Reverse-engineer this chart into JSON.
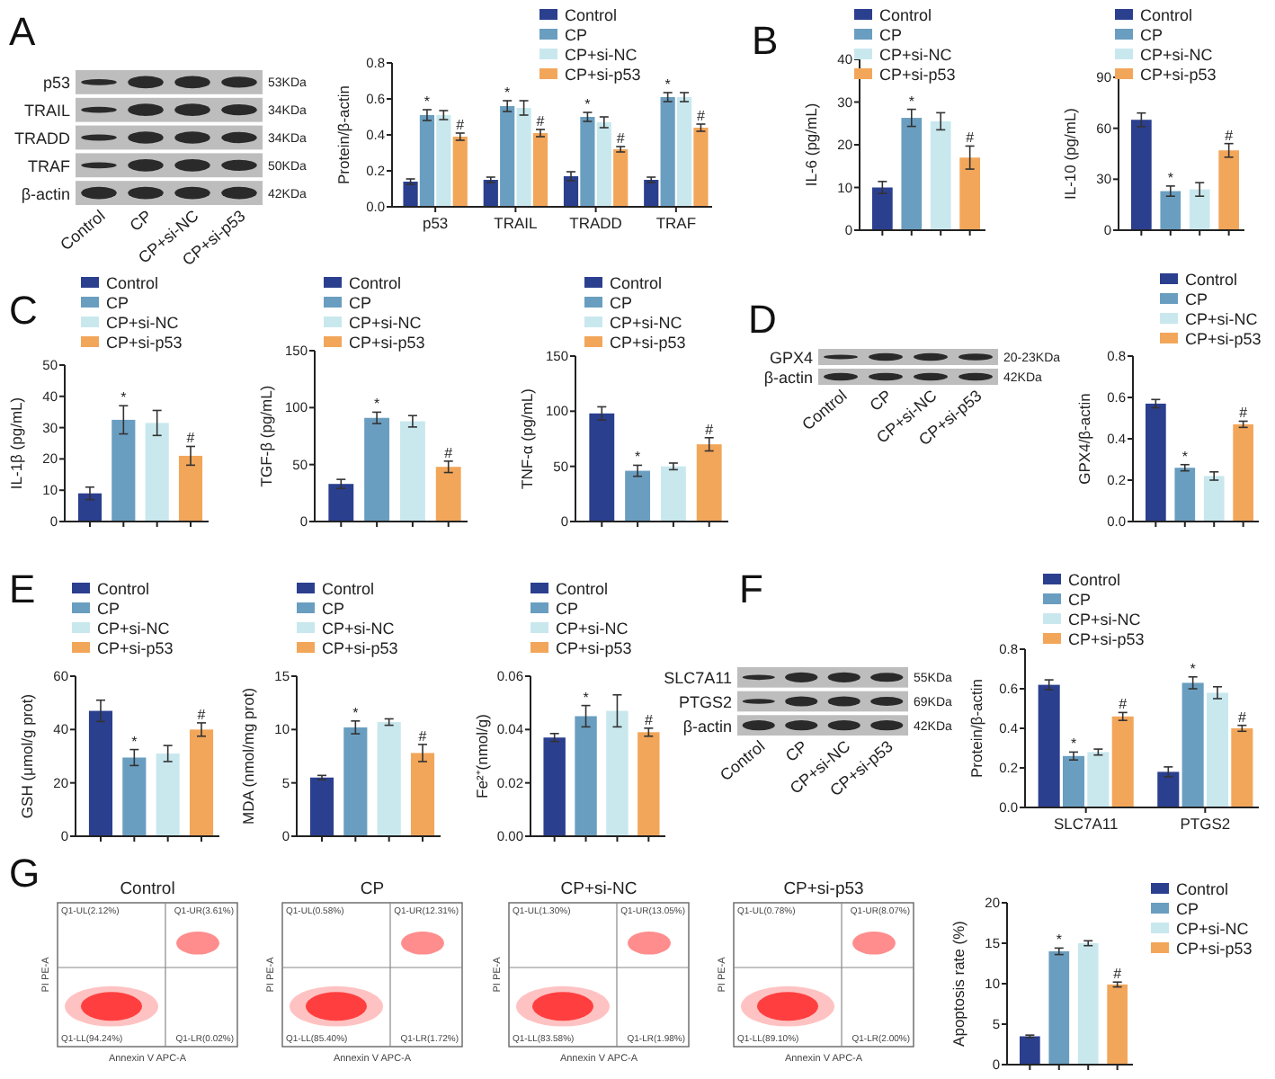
{
  "chart_data": [
    {
      "type": "other",
      "annotations": [
        "A"
      ],
      "categories": [
        "Control",
        "CP",
        "CP+si-NC",
        "CP+si-p53"
      ],
      "y_categories": [
        "p53",
        "TRAIL",
        "TRADD",
        "TRAF",
        "β-actin"
      ],
      "y2_categories": [
        "53KDa",
        "34KDa",
        "34KDa",
        "50KDa",
        "42KDa"
      ]
    },
    {
      "type": "bar",
      "ylabel": "Protein/β-actin",
      "categories": [
        "p53",
        "TRAIL",
        "TRADD",
        "TRAF"
      ],
      "ylim": [
        0,
        0.8
      ],
      "yticks": [
        {
          "value": 0,
          "label": "0.0"
        },
        0.2,
        0.4,
        0.6,
        0.8
      ],
      "legend": "top",
      "series": [
        {
          "name": "Control",
          "color": "#2b3f8f",
          "values": [
            0.14,
            0.15,
            0.17,
            0.15
          ],
          "errors": [
            0.015,
            0.015,
            0.025,
            0.015
          ]
        },
        {
          "name": "CP",
          "color": "#6a9ec0",
          "values": [
            0.51,
            0.56,
            0.5,
            0.61
          ],
          "errors": [
            0.03,
            0.03,
            0.025,
            0.025
          ],
          "value_labels": [
            "*",
            "*",
            "*",
            "*"
          ]
        },
        {
          "name": "CP+si-NC",
          "color": "#c8e8ee",
          "values": [
            0.51,
            0.55,
            0.47,
            0.61
          ],
          "errors": [
            0.025,
            0.04,
            0.03,
            0.025
          ]
        },
        {
          "name": "CP+si-p53",
          "color": "#f2a65a",
          "values": [
            0.39,
            0.41,
            0.32,
            0.44
          ],
          "errors": [
            0.02,
            0.02,
            0.015,
            0.02
          ],
          "value_labels": [
            "#",
            "#",
            "#",
            "#"
          ]
        }
      ]
    },
    {
      "type": "bar",
      "annotations": [
        "B"
      ],
      "ylabel": "IL-6 (pg/mL)",
      "categories": [
        null
      ],
      "ylim": [
        0,
        40
      ],
      "yticks": [
        0,
        10,
        20,
        30,
        40
      ],
      "legend": "top",
      "series": [
        {
          "name": "Control",
          "color": "#2b3f8f",
          "values": [
            10
          ],
          "errors": [
            1.4
          ]
        },
        {
          "name": "CP",
          "color": "#6a9ec0",
          "values": [
            26.3
          ],
          "errors": [
            2
          ],
          "value_labels": [
            "*"
          ]
        },
        {
          "name": "CP+si-NC",
          "color": "#c8e8ee",
          "values": [
            25.5
          ],
          "errors": [
            2
          ]
        },
        {
          "name": "CP+si-p53",
          "color": "#f2a65a",
          "values": [
            17
          ],
          "errors": [
            2.7
          ],
          "value_labels": [
            "#"
          ]
        }
      ]
    },
    {
      "type": "bar",
      "ylabel": "IL-10 (pg/mL)",
      "categories": [
        null
      ],
      "ylim": [
        0,
        90
      ],
      "yticks": [
        0,
        30,
        60,
        90
      ],
      "legend": "top",
      "series": [
        {
          "name": "Control",
          "color": "#2b3f8f",
          "values": [
            65
          ],
          "errors": [
            4
          ]
        },
        {
          "name": "CP",
          "color": "#6a9ec0",
          "values": [
            23
          ],
          "errors": [
            3
          ],
          "value_labels": [
            "*"
          ]
        },
        {
          "name": "CP+si-NC",
          "color": "#c8e8ee",
          "values": [
            24
          ],
          "errors": [
            4
          ]
        },
        {
          "name": "CP+si-p53",
          "color": "#f2a65a",
          "values": [
            47
          ],
          "errors": [
            4
          ],
          "value_labels": [
            "#"
          ]
        }
      ]
    },
    {
      "type": "bar",
      "annotations": [
        "C"
      ],
      "ylabel": "IL-1β (pg/mL)",
      "categories": [
        null
      ],
      "ylim": [
        0,
        50
      ],
      "yticks": [
        0,
        10,
        20,
        30,
        40,
        50
      ],
      "legend": "top",
      "series": [
        {
          "name": "Control",
          "color": "#2b3f8f",
          "values": [
            9
          ],
          "errors": [
            2
          ]
        },
        {
          "name": "CP",
          "color": "#6a9ec0",
          "values": [
            32.5
          ],
          "errors": [
            4.5
          ],
          "value_labels": [
            "*"
          ]
        },
        {
          "name": "CP+si-NC",
          "color": "#c8e8ee",
          "values": [
            31.5
          ],
          "errors": [
            4
          ]
        },
        {
          "name": "CP+si-p53",
          "color": "#f2a65a",
          "values": [
            21
          ],
          "errors": [
            3
          ],
          "value_labels": [
            "#"
          ]
        }
      ]
    },
    {
      "type": "bar",
      "ylabel": "TGF-β (pg/mL)",
      "categories": [
        null
      ],
      "ylim": [
        0,
        150
      ],
      "yticks": [
        0,
        50,
        100,
        150
      ],
      "legend": "top",
      "series": [
        {
          "name": "Control",
          "color": "#2b3f8f",
          "values": [
            33
          ],
          "errors": [
            4
          ]
        },
        {
          "name": "CP",
          "color": "#6a9ec0",
          "values": [
            91
          ],
          "errors": [
            5
          ],
          "value_labels": [
            "*"
          ]
        },
        {
          "name": "CP+si-NC",
          "color": "#c8e8ee",
          "values": [
            88
          ],
          "errors": [
            5
          ]
        },
        {
          "name": "CP+si-p53",
          "color": "#f2a65a",
          "values": [
            48
          ],
          "errors": [
            5
          ],
          "value_labels": [
            "#"
          ]
        }
      ]
    },
    {
      "type": "bar",
      "ylabel": "TNF-α (pg/mL)",
      "categories": [
        null
      ],
      "ylim": [
        0,
        150
      ],
      "yticks": [
        0,
        50,
        100,
        150
      ],
      "legend": "top",
      "series": [
        {
          "name": "Control",
          "color": "#2b3f8f",
          "values": [
            98
          ],
          "errors": [
            6
          ]
        },
        {
          "name": "CP",
          "color": "#6a9ec0",
          "values": [
            46
          ],
          "errors": [
            5
          ],
          "value_labels": [
            "*"
          ]
        },
        {
          "name": "CP+si-NC",
          "color": "#c8e8ee",
          "values": [
            50
          ],
          "errors": [
            3
          ]
        },
        {
          "name": "CP+si-p53",
          "color": "#f2a65a",
          "values": [
            70
          ],
          "errors": [
            6
          ],
          "value_labels": [
            "#"
          ]
        }
      ]
    },
    {
      "type": "other",
      "annotations": [
        "D"
      ],
      "categories": [
        "Control",
        "CP",
        "CP+si-NC",
        "CP+si-p53"
      ],
      "y_categories": [
        "GPX4",
        "β-actin"
      ],
      "y2_categories": [
        "20-23KDa",
        "42KDa"
      ]
    },
    {
      "type": "bar",
      "ylabel": "GPX4/β-actin",
      "categories": [
        null
      ],
      "ylim": [
        0,
        0.8
      ],
      "yticks": [
        {
          "value": 0,
          "label": "0.0"
        },
        0.2,
        0.4,
        0.6,
        0.8
      ],
      "legend": "top",
      "series": [
        {
          "name": "Control",
          "color": "#2b3f8f",
          "values": [
            0.57
          ],
          "errors": [
            0.02
          ]
        },
        {
          "name": "CP",
          "color": "#6a9ec0",
          "values": [
            0.26
          ],
          "errors": [
            0.015
          ],
          "value_labels": [
            "*"
          ]
        },
        {
          "name": "CP+si-NC",
          "color": "#c8e8ee",
          "values": [
            0.22
          ],
          "errors": [
            0.02
          ]
        },
        {
          "name": "CP+si-p53",
          "color": "#f2a65a",
          "values": [
            0.47
          ],
          "errors": [
            0.015
          ],
          "value_labels": [
            "#"
          ]
        }
      ]
    },
    {
      "type": "bar",
      "annotations": [
        "E"
      ],
      "ylabel": "GSH (μmol/g prot)",
      "categories": [
        null
      ],
      "ylim": [
        0,
        60
      ],
      "yticks": [
        0,
        20,
        40,
        60
      ],
      "legend": "top",
      "series": [
        {
          "name": "Control",
          "color": "#2b3f8f",
          "values": [
            47
          ],
          "errors": [
            4
          ]
        },
        {
          "name": "CP",
          "color": "#6a9ec0",
          "values": [
            29.5
          ],
          "errors": [
            3
          ],
          "value_labels": [
            "*"
          ]
        },
        {
          "name": "CP+si-NC",
          "color": "#c8e8ee",
          "values": [
            31
          ],
          "errors": [
            3
          ]
        },
        {
          "name": "CP+si-p53",
          "color": "#f2a65a",
          "values": [
            40
          ],
          "errors": [
            2.5
          ],
          "value_labels": [
            "#"
          ]
        }
      ]
    },
    {
      "type": "bar",
      "ylabel": "MDA (nmol/mg prot)",
      "categories": [
        null
      ],
      "ylim": [
        0,
        15
      ],
      "yticks": [
        0,
        5,
        10,
        15
      ],
      "legend": "top",
      "series": [
        {
          "name": "Control",
          "color": "#2b3f8f",
          "values": [
            5.5
          ],
          "errors": [
            0.2
          ]
        },
        {
          "name": "CP",
          "color": "#6a9ec0",
          "values": [
            10.2
          ],
          "errors": [
            0.6
          ],
          "value_labels": [
            "*"
          ]
        },
        {
          "name": "CP+si-NC",
          "color": "#c8e8ee",
          "values": [
            10.7
          ],
          "errors": [
            0.3
          ]
        },
        {
          "name": "CP+si-p53",
          "color": "#f2a65a",
          "values": [
            7.8
          ],
          "errors": [
            0.8
          ],
          "value_labels": [
            "#"
          ]
        }
      ]
    },
    {
      "type": "bar",
      "ylabel": "Fe²⁺(nmol/g)",
      "categories": [
        null
      ],
      "ylim": [
        0,
        0.06
      ],
      "yticks": [
        {
          "value": 0,
          "label": "0.00"
        },
        {
          "value": 0.02,
          "label": "0.02"
        },
        {
          "value": 0.04,
          "label": "0.04"
        },
        {
          "value": 0.06,
          "label": "0.06"
        }
      ],
      "legend": "top",
      "series": [
        {
          "name": "Control",
          "color": "#2b3f8f",
          "values": [
            0.037
          ],
          "errors": [
            0.0015
          ]
        },
        {
          "name": "CP",
          "color": "#6a9ec0",
          "values": [
            0.045
          ],
          "errors": [
            0.004
          ],
          "value_labels": [
            "*"
          ]
        },
        {
          "name": "CP+si-NC",
          "color": "#c8e8ee",
          "values": [
            0.047
          ],
          "errors": [
            0.006
          ]
        },
        {
          "name": "CP+si-p53",
          "color": "#f2a65a",
          "values": [
            0.039
          ],
          "errors": [
            0.0015
          ],
          "value_labels": [
            "#"
          ]
        }
      ]
    },
    {
      "type": "other",
      "annotations": [
        "F"
      ],
      "categories": [
        "Control",
        "CP",
        "CP+si-NC",
        "CP+si-p53"
      ],
      "y_categories": [
        "SLC7A11",
        "PTGS2",
        "β-actin"
      ],
      "y2_categories": [
        "55KDa",
        "69KDa",
        "42KDa"
      ]
    },
    {
      "type": "bar",
      "ylabel": "Protein/β-actin",
      "categories": [
        "SLC7A11",
        "PTGS2"
      ],
      "ylim": [
        0,
        0.8
      ],
      "yticks": [
        {
          "value": 0,
          "label": "0.0"
        },
        0.2,
        0.4,
        0.6,
        0.8
      ],
      "legend": "top",
      "series": [
        {
          "name": "Control",
          "color": "#2b3f8f",
          "values": [
            0.62,
            0.18
          ],
          "errors": [
            0.025,
            0.025
          ]
        },
        {
          "name": "CP",
          "color": "#6a9ec0",
          "values": [
            0.26,
            0.63
          ],
          "errors": [
            0.02,
            0.03
          ],
          "value_labels": [
            "*",
            "*"
          ]
        },
        {
          "name": "CP+si-NC",
          "color": "#c8e8ee",
          "values": [
            0.28,
            0.58
          ],
          "errors": [
            0.015,
            0.03
          ]
        },
        {
          "name": "CP+si-p53",
          "color": "#f2a65a",
          "values": [
            0.46,
            0.4
          ],
          "errors": [
            0.02,
            0.015
          ],
          "value_labels": [
            "#",
            "#"
          ]
        }
      ]
    },
    {
      "type": "other",
      "title": "Control",
      "xlabel": "Annexin V APC-A",
      "ylabel": "PI PE-A",
      "annotations": [
        "G",
        "Q1-UL(2.12%)",
        "Q1-UR(3.61%)",
        "Q1-LL(94.24%)",
        "Q1-LR(0.02%)"
      ]
    },
    {
      "type": "other",
      "title": "CP",
      "xlabel": "Annexin V APC-A",
      "ylabel": "PI PE-A",
      "annotations": [
        "Q1-UL(0.58%)",
        "Q1-UR(12.31%)",
        "Q1-LL(85.40%)",
        "Q1-LR(1.72%)"
      ]
    },
    {
      "type": "other",
      "title": "CP+si-NC",
      "xlabel": "Annexin V APC-A",
      "ylabel": "PI PE-A",
      "annotations": [
        "Q1-UL(1.30%)",
        "Q1-UR(13.05%)",
        "Q1-LL(83.58%)",
        "Q1-LR(1.98%)"
      ]
    },
    {
      "type": "other",
      "title": "CP+si-p53",
      "xlabel": "Annexin V APC-A",
      "ylabel": "PI PE-A",
      "annotations": [
        "Q1-UL(0.78%)",
        "Q1-UR(8.07%)",
        "Q1-LL(89.10%)",
        "Q1-LR(2.00%)"
      ]
    },
    {
      "type": "bar",
      "ylabel": "Apoptosis rate (%)",
      "categories": [
        null
      ],
      "ylim": [
        0,
        20
      ],
      "yticks": [
        0,
        5,
        10,
        15,
        20
      ],
      "legend": "right",
      "series": [
        {
          "name": "Control",
          "color": "#2b3f8f",
          "values": [
            3.5
          ],
          "errors": [
            0.15
          ]
        },
        {
          "name": "CP",
          "color": "#6a9ec0",
          "values": [
            14
          ],
          "errors": [
            0.4
          ],
          "value_labels": [
            "*"
          ]
        },
        {
          "name": "CP+si-NC",
          "color": "#c8e8ee",
          "values": [
            15
          ],
          "errors": [
            0.3
          ]
        },
        {
          "name": "CP+si-p53",
          "color": "#f2a65a",
          "values": [
            9.9
          ],
          "errors": [
            0.3
          ],
          "value_labels": [
            "#"
          ]
        }
      ]
    }
  ]
}
